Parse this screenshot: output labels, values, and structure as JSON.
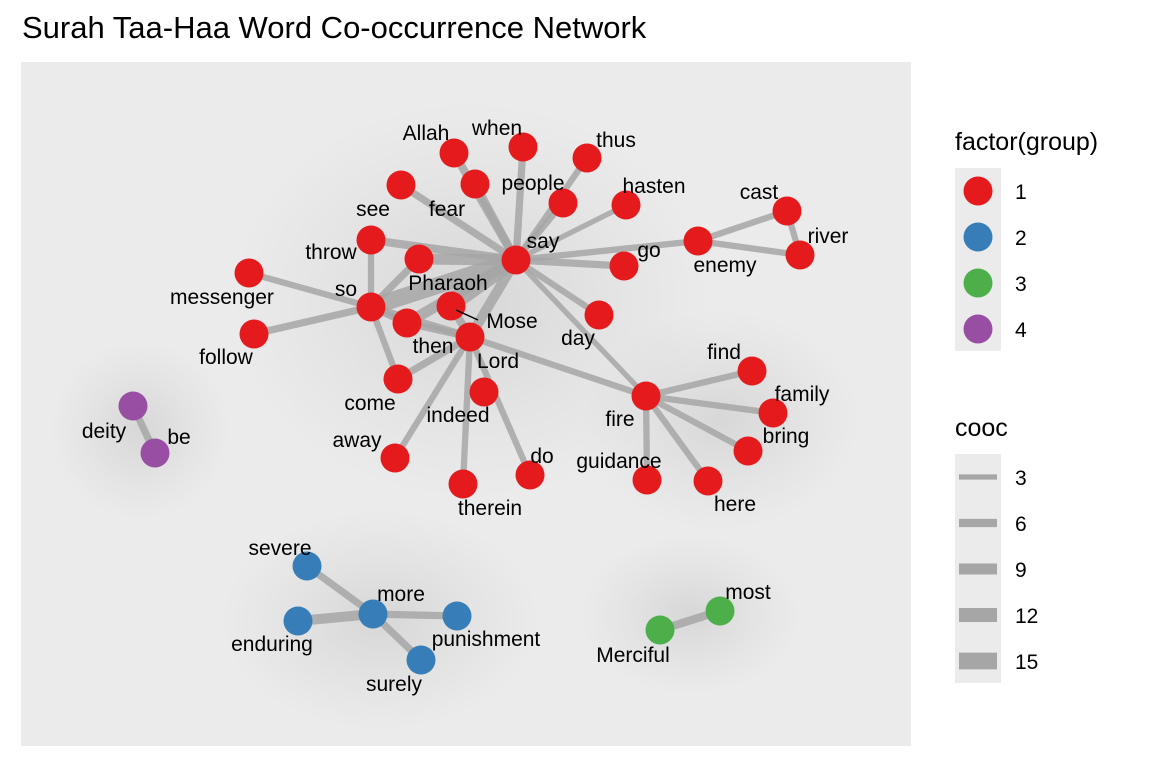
{
  "chart_data": {
    "type": "network",
    "title": "Surah Taa-Haa Word Co-occurrence Network",
    "group_colors": {
      "1": "#E41A1C",
      "2": "#377EB8",
      "3": "#4DAF4A",
      "4": "#984EA3"
    },
    "edge_color": "#a6a6a6",
    "panel_color": "#ebebeb",
    "nodes": [
      {
        "id": "say",
        "group": 1
      },
      {
        "id": "Allah",
        "group": 1
      },
      {
        "id": "when",
        "group": 1
      },
      {
        "id": "thus",
        "group": 1
      },
      {
        "id": "people",
        "group": 1
      },
      {
        "id": "fear",
        "group": 1
      },
      {
        "id": "see",
        "group": 1
      },
      {
        "id": "hasten",
        "group": 1
      },
      {
        "id": "throw",
        "group": 1
      },
      {
        "id": "Pharaoh",
        "group": 1
      },
      {
        "id": "go",
        "group": 1
      },
      {
        "id": "enemy",
        "group": 1
      },
      {
        "id": "cast",
        "group": 1
      },
      {
        "id": "river",
        "group": 1
      },
      {
        "id": "messenger",
        "group": 1
      },
      {
        "id": "so",
        "group": 1
      },
      {
        "id": "Mose",
        "group": 1
      },
      {
        "id": "then",
        "group": 1
      },
      {
        "id": "follow",
        "group": 1
      },
      {
        "id": "day",
        "group": 1
      },
      {
        "id": "Lord",
        "group": 1
      },
      {
        "id": "come",
        "group": 1
      },
      {
        "id": "indeed",
        "group": 1
      },
      {
        "id": "find",
        "group": 1
      },
      {
        "id": "fire",
        "group": 1
      },
      {
        "id": "family",
        "group": 1
      },
      {
        "id": "bring",
        "group": 1
      },
      {
        "id": "away",
        "group": 1
      },
      {
        "id": "do",
        "group": 1
      },
      {
        "id": "guidance",
        "group": 1
      },
      {
        "id": "therein",
        "group": 1
      },
      {
        "id": "here",
        "group": 1
      },
      {
        "id": "deity",
        "group": 4
      },
      {
        "id": "be",
        "group": 4
      },
      {
        "id": "severe",
        "group": 2
      },
      {
        "id": "more",
        "group": 2
      },
      {
        "id": "enduring",
        "group": 2
      },
      {
        "id": "punishment",
        "group": 2
      },
      {
        "id": "surely",
        "group": 2
      },
      {
        "id": "most",
        "group": 3
      },
      {
        "id": "Merciful",
        "group": 3
      }
    ],
    "edges": [
      {
        "source": "say",
        "target": "Allah",
        "cooc": 6
      },
      {
        "source": "say",
        "target": "when",
        "cooc": 5
      },
      {
        "source": "say",
        "target": "thus",
        "cooc": 4
      },
      {
        "source": "say",
        "target": "people",
        "cooc": 6
      },
      {
        "source": "say",
        "target": "fear",
        "cooc": 5
      },
      {
        "source": "say",
        "target": "see",
        "cooc": 4
      },
      {
        "source": "say",
        "target": "hasten",
        "cooc": 3
      },
      {
        "source": "say",
        "target": "throw",
        "cooc": 6
      },
      {
        "source": "say",
        "target": "Pharaoh",
        "cooc": 9
      },
      {
        "source": "say",
        "target": "go",
        "cooc": 5
      },
      {
        "source": "say",
        "target": "enemy",
        "cooc": 4
      },
      {
        "source": "say",
        "target": "so",
        "cooc": 15
      },
      {
        "source": "say",
        "target": "Mose",
        "cooc": 12
      },
      {
        "source": "say",
        "target": "then",
        "cooc": 9
      },
      {
        "source": "say",
        "target": "day",
        "cooc": 4
      },
      {
        "source": "say",
        "target": "Lord",
        "cooc": 8
      },
      {
        "source": "say",
        "target": "fire",
        "cooc": 3
      },
      {
        "source": "enemy",
        "target": "cast",
        "cooc": 4
      },
      {
        "source": "enemy",
        "target": "river",
        "cooc": 4
      },
      {
        "source": "cast",
        "target": "river",
        "cooc": 4
      },
      {
        "source": "so",
        "target": "messenger",
        "cooc": 4
      },
      {
        "source": "so",
        "target": "follow",
        "cooc": 5
      },
      {
        "source": "so",
        "target": "throw",
        "cooc": 4
      },
      {
        "source": "so",
        "target": "then",
        "cooc": 5
      },
      {
        "source": "so",
        "target": "Lord",
        "cooc": 5
      },
      {
        "source": "so",
        "target": "Pharaoh",
        "cooc": 5
      },
      {
        "source": "so",
        "target": "come",
        "cooc": 4
      },
      {
        "source": "Lord",
        "target": "Mose",
        "cooc": 6
      },
      {
        "source": "Lord",
        "target": "then",
        "cooc": 5
      },
      {
        "source": "Lord",
        "target": "come",
        "cooc": 5
      },
      {
        "source": "Lord",
        "target": "away",
        "cooc": 4
      },
      {
        "source": "Lord",
        "target": "therein",
        "cooc": 4
      },
      {
        "source": "Lord",
        "target": "do",
        "cooc": 4
      },
      {
        "source": "Lord",
        "target": "fire",
        "cooc": 4
      },
      {
        "source": "fire",
        "target": "find",
        "cooc": 4
      },
      {
        "source": "fire",
        "target": "family",
        "cooc": 4
      },
      {
        "source": "fire",
        "target": "bring",
        "cooc": 4
      },
      {
        "source": "fire",
        "target": "guidance",
        "cooc": 4
      },
      {
        "source": "fire",
        "target": "here",
        "cooc": 4
      },
      {
        "source": "deity",
        "target": "be",
        "cooc": 5
      },
      {
        "source": "more",
        "target": "severe",
        "cooc": 5
      },
      {
        "source": "more",
        "target": "enduring",
        "cooc": 8
      },
      {
        "source": "more",
        "target": "punishment",
        "cooc": 5
      },
      {
        "source": "more",
        "target": "surely",
        "cooc": 5
      },
      {
        "source": "most",
        "target": "Merciful",
        "cooc": 6
      }
    ],
    "legend": {
      "color_title": "factor(group)",
      "color_items": [
        "1",
        "2",
        "3",
        "4"
      ],
      "width_title": "cooc",
      "width_items": [
        3,
        6,
        9,
        12,
        15
      ]
    }
  }
}
